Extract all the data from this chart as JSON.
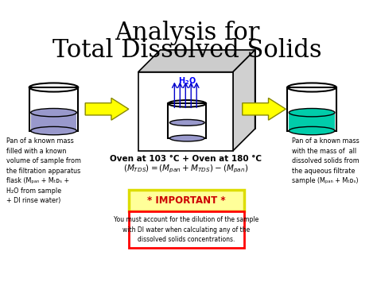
{
  "title_line1": "Analysis for",
  "title_line2": "Total Dissolved Solids",
  "title_fontsize": 22,
  "bg_color": "#ffffff",
  "left_text": "Pan of a known mass\nfilled with a known\nvolume of sample from\nthe filtration apparatus\nflask (Mₚₐₙ + Mₜᴅₛ +\nH₂O from sample\n+ DI rinse water)",
  "right_text": "Pan of a known mass\nwith the mass of  all\ndissolved solids from\nthe aqueous filtrate\nsample (Mₚₐₙ + Mₜᴅₛ)",
  "oven_text": "Oven at 103 °C + Oven at 180 °C",
  "formula": "(Mₜᴅₛ) = (Mₚₐₙ + Mₜᴅₛ) - (Mₚₐₙ)",
  "important_label": "* IMPORTANT *",
  "important_text": "You must account for the dilution of the sample\nwith DI water when calculating any of the\ndissolved solids concentrations.",
  "arrow_color": "#ffff00",
  "arrow_edge_color": "#cccc00",
  "beaker_liquid_left": "#9999cc",
  "beaker_liquid_right": "#00ccaa",
  "box_color": "#dddddd",
  "important_border": "#ff0000",
  "important_bg": "#ffff99",
  "important_label_color": "#cc0000",
  "water_label_color": "#0000ff",
  "h2o_arrow_color": "#0000cc"
}
